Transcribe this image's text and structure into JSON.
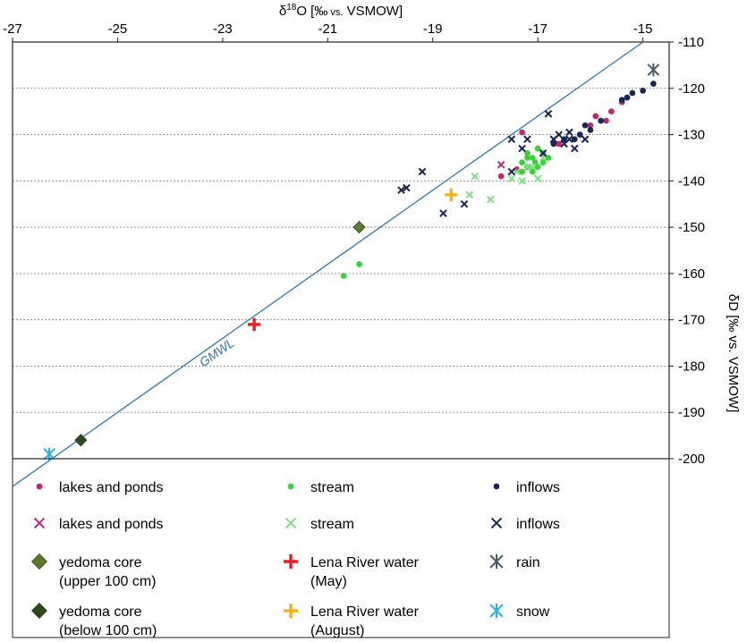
{
  "chart_data": {
    "type": "scatter",
    "title": "",
    "xlabel": "δ18O [‰ vs. VSMOW]",
    "xlabel_parts": {
      "prefix": "δ",
      "sup": "18",
      "main": "O [‰",
      "small": " vs.",
      "suffix": " VSMOW]"
    },
    "ylabel": "δD [‰ vs. VSMOW]",
    "xlim": [
      -27,
      -14.5
    ],
    "ylim": [
      -200,
      -110
    ],
    "x_axis_position": "top",
    "y_axis_position": "right",
    "x_ticks": [
      -27,
      -25,
      -23,
      -21,
      -19,
      -17,
      -15
    ],
    "y_ticks": [
      -110,
      -120,
      -130,
      -140,
      -150,
      -160,
      -170,
      -180,
      -190,
      -200
    ],
    "grid": "horizontal dashed",
    "gmwl": {
      "label": "GMWL",
      "slope": 8,
      "intercept": 10,
      "color": "#2e75b6"
    },
    "legend_position": "bottom",
    "legend": [
      {
        "label": "lakes and ponds",
        "marker": "dot",
        "color": "#c0286e"
      },
      {
        "label": "stream",
        "marker": "dot",
        "color": "#3ccf3c"
      },
      {
        "label": "inflows",
        "marker": "dot",
        "color": "#1a2557"
      },
      {
        "label": "lakes and ponds",
        "marker": "x",
        "color": "#c0286e"
      },
      {
        "label": "stream",
        "marker": "x",
        "color": "#7fe07f"
      },
      {
        "label": "inflows",
        "marker": "x",
        "color": "#1a2557"
      },
      {
        "label": "yedoma core\n(upper 100 cm)",
        "marker": "diamond",
        "color": "#5a7a2a"
      },
      {
        "label": "Lena River water\n(May)",
        "marker": "plus",
        "color": "#ee1c25"
      },
      {
        "label": "rain",
        "marker": "asterisk",
        "color": "#4a5a6e"
      },
      {
        "label": "yedoma core\n(below 100 cm)",
        "marker": "diamond",
        "color": "#2f4a1a"
      },
      {
        "label": "Lena River water\n(August)",
        "marker": "plus",
        "color": "#f7b21b"
      },
      {
        "label": "snow",
        "marker": "asterisk",
        "color": "#2ab0e0"
      }
    ],
    "series": [
      {
        "label_ref": 0,
        "points": [
          [
            -17.3,
            -129.5
          ],
          [
            -17.7,
            -139
          ],
          [
            -17.4,
            -137.5
          ],
          [
            -16.6,
            -132
          ],
          [
            -16.2,
            -130
          ],
          [
            -16,
            -128
          ],
          [
            -15.9,
            -126
          ],
          [
            -15.6,
            -125
          ],
          [
            -15.4,
            -123
          ],
          [
            -15.7,
            -127
          ],
          [
            -17,
            -133
          ]
        ]
      },
      {
        "label_ref": 1,
        "points": [
          [
            -20.7,
            -160.5
          ],
          [
            -20.4,
            -158
          ],
          [
            -17.2,
            -134
          ],
          [
            -17.1,
            -135
          ],
          [
            -17,
            -133
          ],
          [
            -16.9,
            -134
          ],
          [
            -17.3,
            -136
          ],
          [
            -17.2,
            -137
          ],
          [
            -17,
            -137
          ],
          [
            -16.9,
            -136
          ],
          [
            -17.1,
            -138
          ],
          [
            -16.8,
            -135
          ],
          [
            -17.3,
            -138
          ],
          [
            -17.2,
            -135
          ],
          [
            -17.05,
            -136
          ]
        ]
      },
      {
        "label_ref": 2,
        "points": [
          [
            -14.8,
            -119
          ],
          [
            -15,
            -120.5
          ],
          [
            -15.2,
            -121
          ],
          [
            -15.3,
            -122
          ],
          [
            -15.4,
            -122.5
          ],
          [
            -16,
            -129
          ],
          [
            -16.2,
            -130
          ],
          [
            -16.5,
            -131
          ],
          [
            -16.7,
            -132
          ],
          [
            -16.3,
            -131
          ],
          [
            -16.1,
            -128
          ],
          [
            -15.8,
            -127
          ]
        ]
      },
      {
        "label_ref": 3,
        "points": [
          [
            -17.7,
            -136.5
          ]
        ]
      },
      {
        "label_ref": 4,
        "points": [
          [
            -18.2,
            -139
          ],
          [
            -18.3,
            -143
          ],
          [
            -17.9,
            -144
          ],
          [
            -17.5,
            -139.5
          ],
          [
            -17.4,
            -138
          ],
          [
            -17.3,
            -140
          ],
          [
            -17.1,
            -137
          ],
          [
            -17,
            -139.5
          ],
          [
            -16.9,
            -135
          ],
          [
            -17.2,
            -137
          ]
        ]
      },
      {
        "label_ref": 5,
        "points": [
          [
            -19.6,
            -142
          ],
          [
            -19.5,
            -141.5
          ],
          [
            -19.2,
            -138
          ],
          [
            -18.8,
            -147
          ],
          [
            -18.4,
            -145
          ],
          [
            -17.5,
            -131
          ],
          [
            -17.5,
            -138
          ],
          [
            -17.2,
            -131
          ],
          [
            -16.8,
            -125.5
          ],
          [
            -16.7,
            -131
          ],
          [
            -16.5,
            -132
          ],
          [
            -16.4,
            -131
          ],
          [
            -16.3,
            -133
          ],
          [
            -16.1,
            -131
          ],
          [
            -16.9,
            -134
          ],
          [
            -17.3,
            -133
          ],
          [
            -16.6,
            -130
          ],
          [
            -16.4,
            -129.5
          ]
        ]
      },
      {
        "label_ref": 6,
        "points": [
          [
            -20.4,
            -150
          ]
        ]
      },
      {
        "label_ref": 7,
        "points": [
          [
            -22.4,
            -171
          ]
        ]
      },
      {
        "label_ref": 8,
        "points": [
          [
            -14.8,
            -116
          ]
        ]
      },
      {
        "label_ref": 9,
        "points": [
          [
            -25.7,
            -196
          ]
        ]
      },
      {
        "label_ref": 10,
        "points": [
          [
            -18.65,
            -143
          ]
        ]
      },
      {
        "label_ref": 11,
        "points": [
          [
            -26.3,
            -199
          ]
        ]
      }
    ]
  }
}
